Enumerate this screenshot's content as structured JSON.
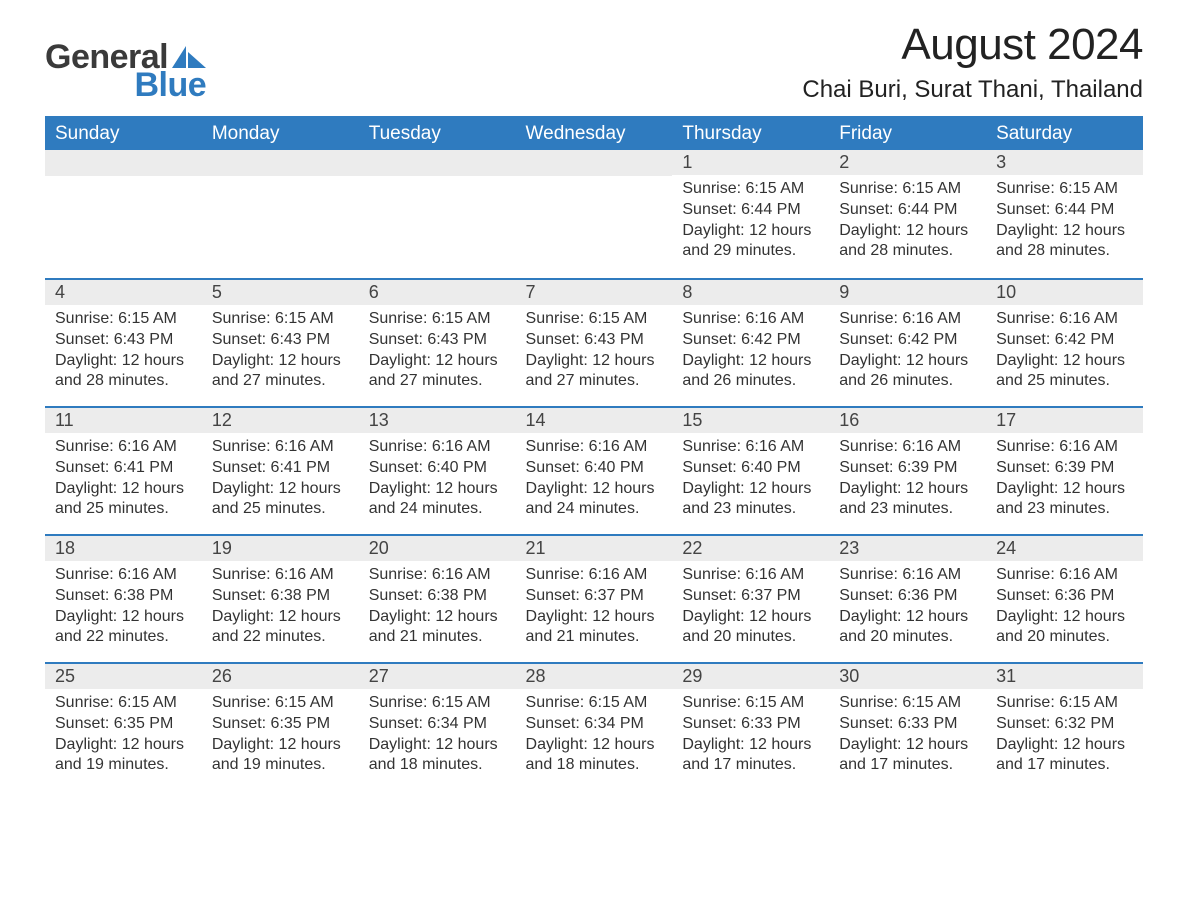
{
  "brand": {
    "part1": "General",
    "part2": "Blue",
    "color1": "#3a3a3a",
    "color2": "#2f7bbf"
  },
  "title": "August 2024",
  "location": "Chai Buri, Surat Thani, Thailand",
  "header_bg": "#2f7bbf",
  "header_text_color": "#ffffff",
  "daynum_bg": "#ececec",
  "border_color": "#2f7bbf",
  "days": [
    "Sunday",
    "Monday",
    "Tuesday",
    "Wednesday",
    "Thursday",
    "Friday",
    "Saturday"
  ],
  "weeks": [
    [
      null,
      null,
      null,
      null,
      {
        "n": "1",
        "sunrise": "6:15 AM",
        "sunset": "6:44 PM",
        "daylight": "12 hours and 29 minutes."
      },
      {
        "n": "2",
        "sunrise": "6:15 AM",
        "sunset": "6:44 PM",
        "daylight": "12 hours and 28 minutes."
      },
      {
        "n": "3",
        "sunrise": "6:15 AM",
        "sunset": "6:44 PM",
        "daylight": "12 hours and 28 minutes."
      }
    ],
    [
      {
        "n": "4",
        "sunrise": "6:15 AM",
        "sunset": "6:43 PM",
        "daylight": "12 hours and 28 minutes."
      },
      {
        "n": "5",
        "sunrise": "6:15 AM",
        "sunset": "6:43 PM",
        "daylight": "12 hours and 27 minutes."
      },
      {
        "n": "6",
        "sunrise": "6:15 AM",
        "sunset": "6:43 PM",
        "daylight": "12 hours and 27 minutes."
      },
      {
        "n": "7",
        "sunrise": "6:15 AM",
        "sunset": "6:43 PM",
        "daylight": "12 hours and 27 minutes."
      },
      {
        "n": "8",
        "sunrise": "6:16 AM",
        "sunset": "6:42 PM",
        "daylight": "12 hours and 26 minutes."
      },
      {
        "n": "9",
        "sunrise": "6:16 AM",
        "sunset": "6:42 PM",
        "daylight": "12 hours and 26 minutes."
      },
      {
        "n": "10",
        "sunrise": "6:16 AM",
        "sunset": "6:42 PM",
        "daylight": "12 hours and 25 minutes."
      }
    ],
    [
      {
        "n": "11",
        "sunrise": "6:16 AM",
        "sunset": "6:41 PM",
        "daylight": "12 hours and 25 minutes."
      },
      {
        "n": "12",
        "sunrise": "6:16 AM",
        "sunset": "6:41 PM",
        "daylight": "12 hours and 25 minutes."
      },
      {
        "n": "13",
        "sunrise": "6:16 AM",
        "sunset": "6:40 PM",
        "daylight": "12 hours and 24 minutes."
      },
      {
        "n": "14",
        "sunrise": "6:16 AM",
        "sunset": "6:40 PM",
        "daylight": "12 hours and 24 minutes."
      },
      {
        "n": "15",
        "sunrise": "6:16 AM",
        "sunset": "6:40 PM",
        "daylight": "12 hours and 23 minutes."
      },
      {
        "n": "16",
        "sunrise": "6:16 AM",
        "sunset": "6:39 PM",
        "daylight": "12 hours and 23 minutes."
      },
      {
        "n": "17",
        "sunrise": "6:16 AM",
        "sunset": "6:39 PM",
        "daylight": "12 hours and 23 minutes."
      }
    ],
    [
      {
        "n": "18",
        "sunrise": "6:16 AM",
        "sunset": "6:38 PM",
        "daylight": "12 hours and 22 minutes."
      },
      {
        "n": "19",
        "sunrise": "6:16 AM",
        "sunset": "6:38 PM",
        "daylight": "12 hours and 22 minutes."
      },
      {
        "n": "20",
        "sunrise": "6:16 AM",
        "sunset": "6:38 PM",
        "daylight": "12 hours and 21 minutes."
      },
      {
        "n": "21",
        "sunrise": "6:16 AM",
        "sunset": "6:37 PM",
        "daylight": "12 hours and 21 minutes."
      },
      {
        "n": "22",
        "sunrise": "6:16 AM",
        "sunset": "6:37 PM",
        "daylight": "12 hours and 20 minutes."
      },
      {
        "n": "23",
        "sunrise": "6:16 AM",
        "sunset": "6:36 PM",
        "daylight": "12 hours and 20 minutes."
      },
      {
        "n": "24",
        "sunrise": "6:16 AM",
        "sunset": "6:36 PM",
        "daylight": "12 hours and 20 minutes."
      }
    ],
    [
      {
        "n": "25",
        "sunrise": "6:15 AM",
        "sunset": "6:35 PM",
        "daylight": "12 hours and 19 minutes."
      },
      {
        "n": "26",
        "sunrise": "6:15 AM",
        "sunset": "6:35 PM",
        "daylight": "12 hours and 19 minutes."
      },
      {
        "n": "27",
        "sunrise": "6:15 AM",
        "sunset": "6:34 PM",
        "daylight": "12 hours and 18 minutes."
      },
      {
        "n": "28",
        "sunrise": "6:15 AM",
        "sunset": "6:34 PM",
        "daylight": "12 hours and 18 minutes."
      },
      {
        "n": "29",
        "sunrise": "6:15 AM",
        "sunset": "6:33 PM",
        "daylight": "12 hours and 17 minutes."
      },
      {
        "n": "30",
        "sunrise": "6:15 AM",
        "sunset": "6:33 PM",
        "daylight": "12 hours and 17 minutes."
      },
      {
        "n": "31",
        "sunrise": "6:15 AM",
        "sunset": "6:32 PM",
        "daylight": "12 hours and 17 minutes."
      }
    ]
  ],
  "labels": {
    "sunrise": "Sunrise: ",
    "sunset": "Sunset: ",
    "daylight": "Daylight: "
  }
}
